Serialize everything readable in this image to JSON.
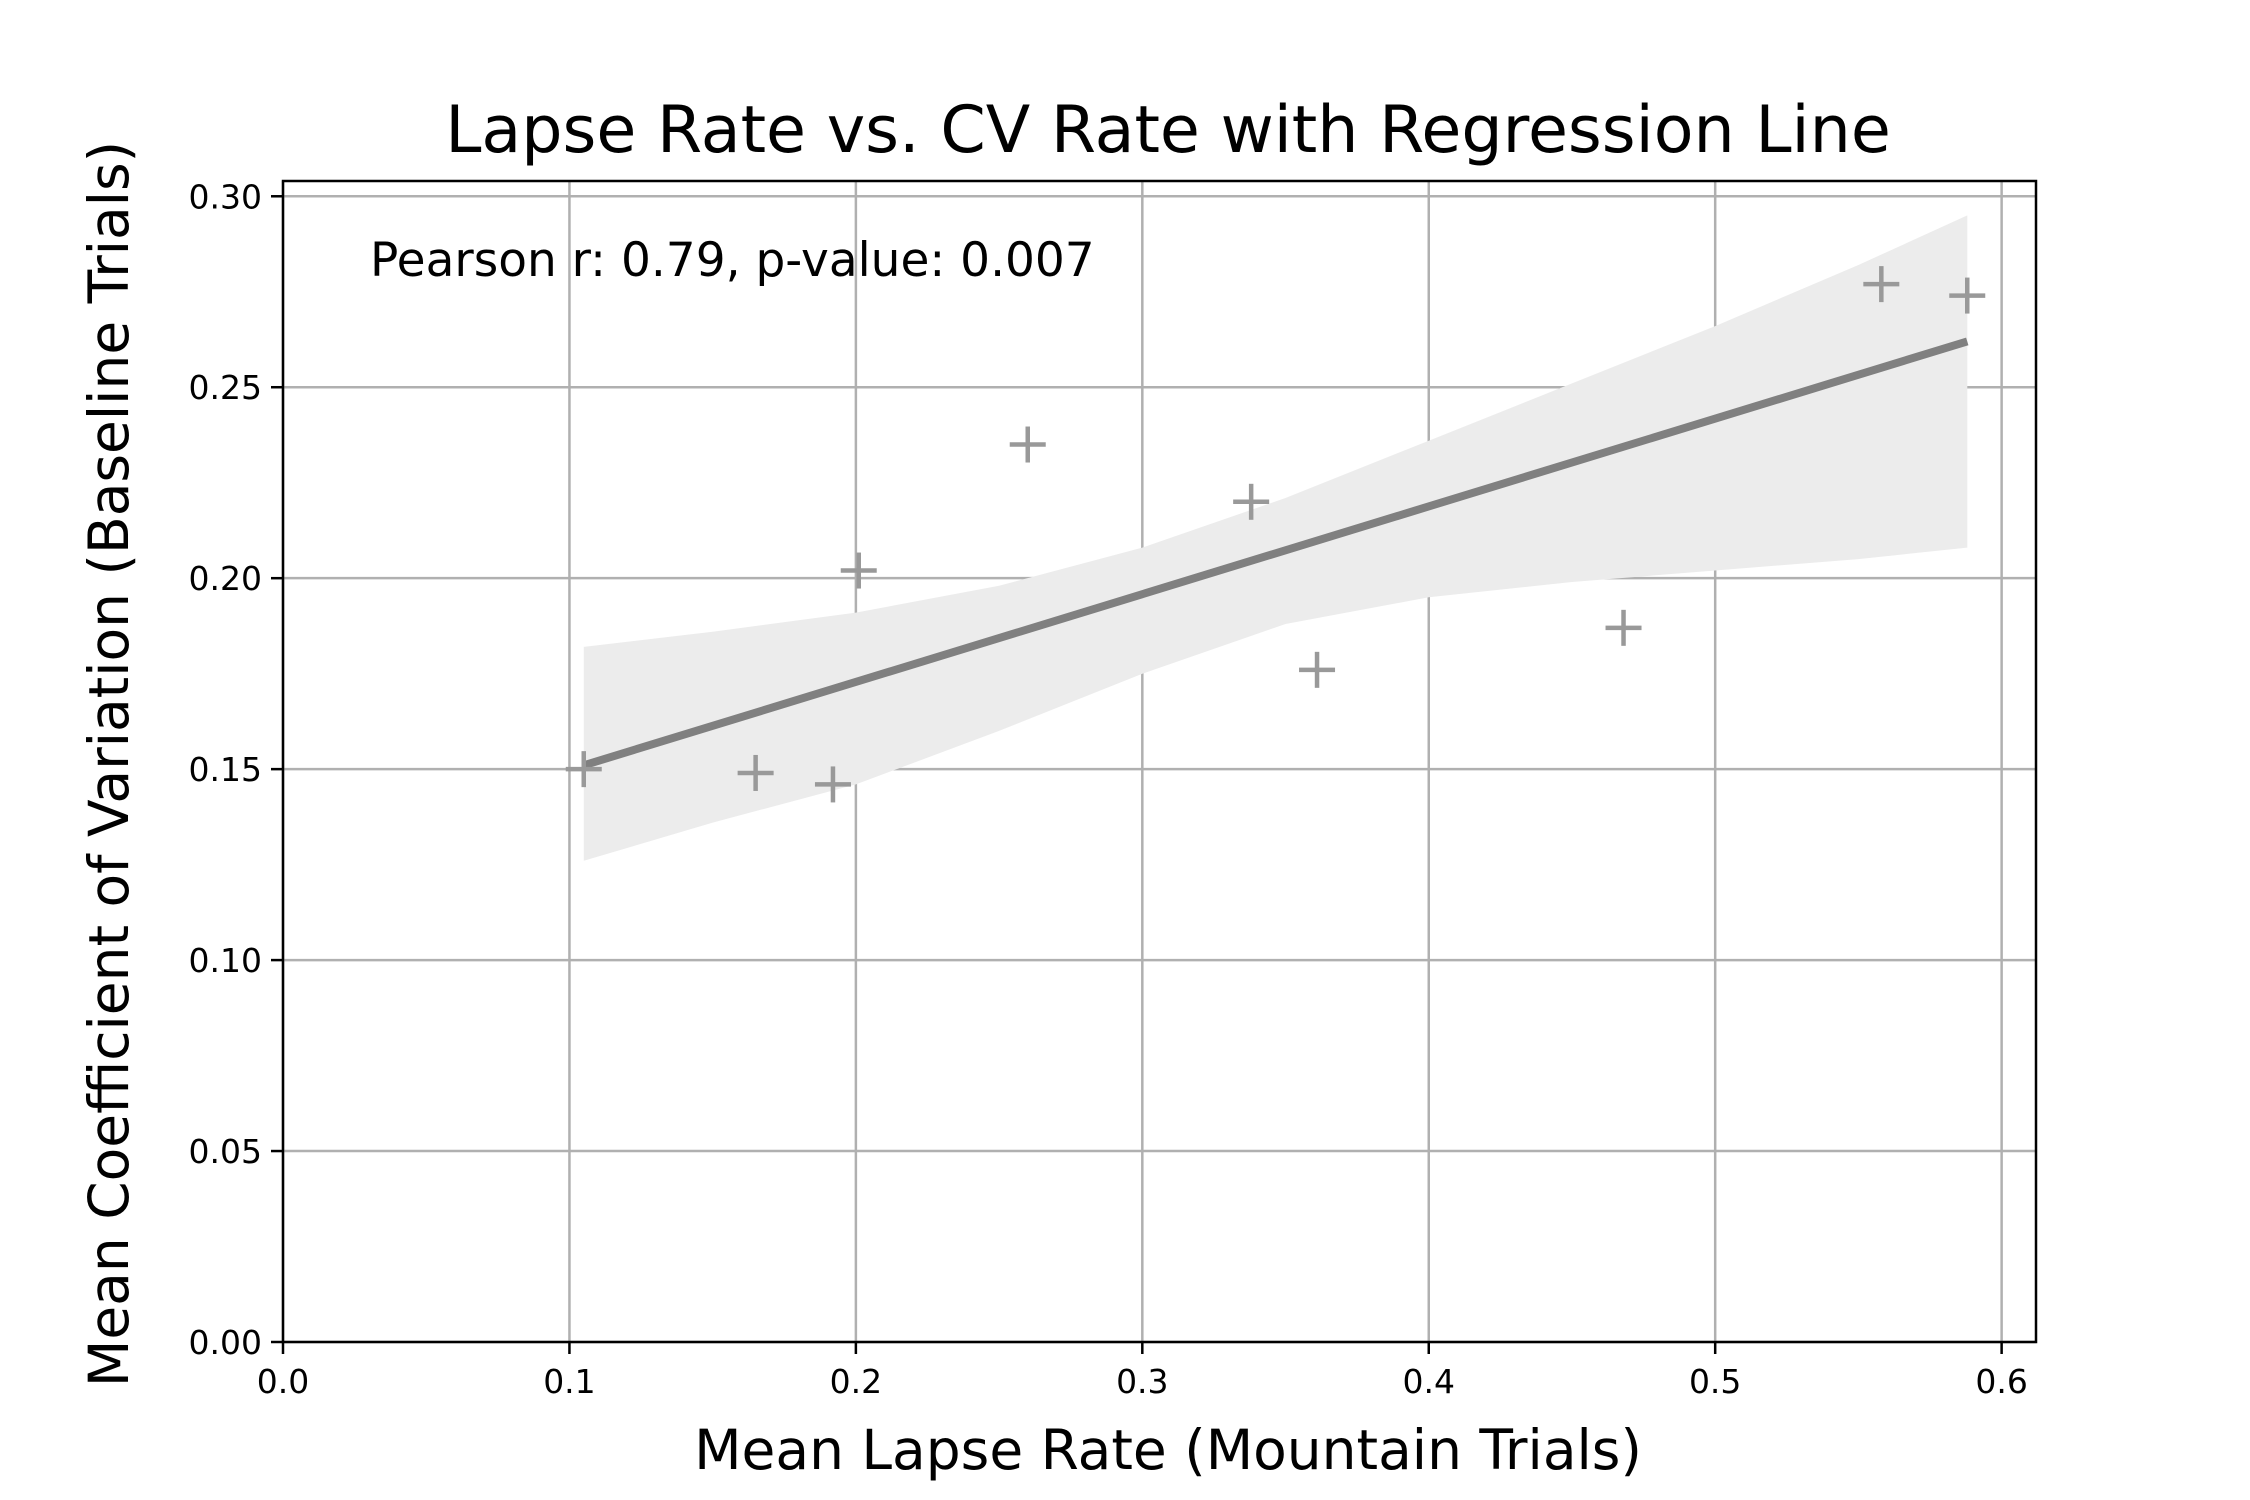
{
  "chart_data": {
    "type": "scatter",
    "title": "Lapse Rate vs. CV Rate with Regression Line",
    "xlabel": "Mean Lapse Rate (Mountain Trials)",
    "ylabel": "Mean Coefficient of Variation (Baseline Trials)",
    "xlim": [
      0.0,
      0.612
    ],
    "ylim": [
      0.0,
      0.304
    ],
    "xticks": [
      0.0,
      0.1,
      0.2,
      0.3,
      0.4,
      0.5,
      0.6
    ],
    "xtick_labels": [
      "0.0",
      "0.1",
      "0.2",
      "0.3",
      "0.4",
      "0.5",
      "0.6"
    ],
    "yticks": [
      0.0,
      0.05,
      0.1,
      0.15,
      0.2,
      0.25,
      0.3
    ],
    "ytick_labels": [
      "0.00",
      "0.05",
      "0.10",
      "0.15",
      "0.20",
      "0.25",
      "0.30"
    ],
    "grid": true,
    "annotation": "Pearson r: 0.79, p-value: 0.007",
    "marker": "plus",
    "point_color": "#999999",
    "line_color": "#808080",
    "band_color": "#ececec",
    "points": [
      {
        "x": 0.105,
        "y": 0.15
      },
      {
        "x": 0.165,
        "y": 0.149
      },
      {
        "x": 0.192,
        "y": 0.146
      },
      {
        "x": 0.201,
        "y": 0.202
      },
      {
        "x": 0.26,
        "y": 0.235
      },
      {
        "x": 0.338,
        "y": 0.22
      },
      {
        "x": 0.361,
        "y": 0.176
      },
      {
        "x": 0.468,
        "y": 0.187
      },
      {
        "x": 0.558,
        "y": 0.277
      },
      {
        "x": 0.588,
        "y": 0.274
      }
    ],
    "regression": {
      "x_range": [
        0.105,
        0.588
      ],
      "y_range": [
        0.151,
        0.262
      ]
    },
    "confidence_band": {
      "x": [
        0.105,
        0.15,
        0.2,
        0.25,
        0.3,
        0.35,
        0.4,
        0.45,
        0.5,
        0.55,
        0.588
      ],
      "upper": [
        0.182,
        0.186,
        0.191,
        0.198,
        0.208,
        0.221,
        0.236,
        0.251,
        0.266,
        0.282,
        0.295
      ],
      "lower": [
        0.126,
        0.136,
        0.146,
        0.16,
        0.175,
        0.188,
        0.195,
        0.199,
        0.202,
        0.205,
        0.208
      ]
    }
  }
}
